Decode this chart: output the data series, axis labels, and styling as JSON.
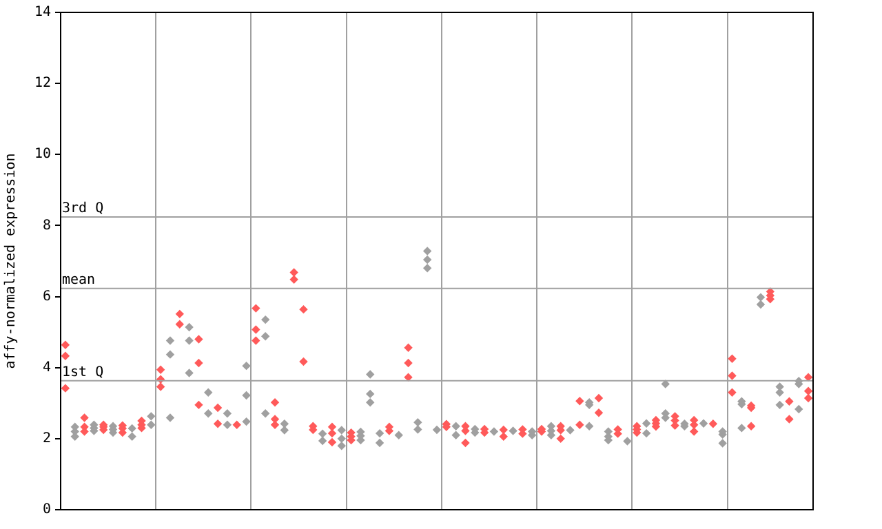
{
  "chart_data": {
    "type": "scatter",
    "ylabel": "affy-normalized expression",
    "categories": [
      null,
      null,
      null,
      null,
      null,
      null,
      null,
      null,
      null,
      null,
      null,
      null,
      null,
      null,
      null,
      null,
      null,
      null,
      null,
      null,
      null,
      null,
      null,
      null,
      null,
      null,
      null,
      null,
      null,
      null,
      null,
      null,
      null,
      null,
      null,
      null,
      null,
      null,
      null,
      null,
      null,
      null,
      null,
      null,
      null,
      null,
      null,
      null,
      null,
      null,
      null,
      null,
      null,
      null,
      null,
      null,
      null,
      null,
      null,
      null,
      null,
      null,
      null,
      null,
      null,
      null,
      null,
      null,
      null,
      null,
      null,
      null,
      null,
      null,
      null,
      null,
      null,
      null,
      null
    ],
    "ylim": [
      0,
      14
    ],
    "yticks": [
      0,
      2,
      4,
      6,
      8,
      10,
      12,
      14
    ],
    "tick_labels": "y",
    "grid": "x",
    "marker": "diamond",
    "legend": false,
    "ref_lines": [
      {
        "axis": "y",
        "value": 8.24,
        "label": "3rd Q",
        "color": "#a0a0a0"
      },
      {
        "axis": "y",
        "value": 6.23,
        "label": "mean",
        "color": "#a0a0a0"
      },
      {
        "axis": "y",
        "value": 3.63,
        "label": "1st Q",
        "color": "#a0a0a0"
      }
    ],
    "series": [
      {
        "values": [
          4.64,
          2.33,
          2.59,
          2.39,
          2.39,
          2.35,
          2.37,
          2.29,
          2.5,
          2.63,
          3.94,
          4.76,
          5.51,
          5.14,
          4.8,
          3.3,
          2.87,
          2.71,
          2.39,
          4.05,
          5.67,
          5.35,
          3.02,
          2.42,
          6.68,
          5.64,
          2.35,
          2.14,
          2.33,
          2.24,
          2.17,
          2.19,
          3.81,
          2.15,
          2.33,
          2.1,
          4.56,
          2.46,
          7.28,
          2.25,
          2.41,
          2.35,
          2.35,
          2.27,
          2.27,
          2.2,
          2.25,
          2.22,
          2.26,
          2.2,
          2.27,
          2.35,
          2.35,
          2.24,
          3.06,
          3.02,
          3.14,
          2.2,
          2.26,
          1.93,
          2.35,
          2.43,
          2.52,
          3.54,
          2.63,
          2.42,
          2.52,
          2.43,
          2.42,
          2.2,
          4.25,
          3.05,
          2.93,
          5.98,
          6.14,
          3.46,
          3.05,
          3.62,
          3.73
        ],
        "colors": [
          "#ff5a5a",
          "#a0a0a0",
          "#ff5a5a",
          "#a0a0a0",
          "#ff5a5a",
          "#a0a0a0",
          "#ff5a5a",
          "#a0a0a0",
          "#ff5a5a",
          "#a0a0a0",
          "#ff5a5a",
          "#a0a0a0",
          "#ff5a5a",
          "#a0a0a0",
          "#ff5a5a",
          "#a0a0a0",
          "#ff5a5a",
          "#a0a0a0",
          "#ff5a5a",
          "#a0a0a0",
          "#ff5a5a",
          "#a0a0a0",
          "#ff5a5a",
          "#a0a0a0",
          "#ff5a5a",
          "#ff5a5a",
          "#ff5a5a",
          "#a0a0a0",
          "#ff5a5a",
          "#a0a0a0",
          "#ff5a5a",
          "#a0a0a0",
          "#a0a0a0",
          "#a0a0a0",
          "#ff5a5a",
          "#a0a0a0",
          "#ff5a5a",
          "#a0a0a0",
          "#a0a0a0",
          "#a0a0a0",
          "#ff5a5a",
          "#a0a0a0",
          "#ff5a5a",
          "#a0a0a0",
          "#ff5a5a",
          "#a0a0a0",
          "#ff5a5a",
          "#a0a0a0",
          "#ff5a5a",
          "#a0a0a0",
          "#ff5a5a",
          "#a0a0a0",
          "#ff5a5a",
          "#a0a0a0",
          "#ff5a5a",
          "#a0a0a0",
          "#ff5a5a",
          "#a0a0a0",
          "#ff5a5a",
          "#a0a0a0",
          "#ff5a5a",
          "#a0a0a0",
          "#ff5a5a",
          "#a0a0a0",
          "#ff5a5a",
          "#a0a0a0",
          "#ff5a5a",
          "#a0a0a0",
          "#ff5a5a",
          "#a0a0a0",
          "#ff5a5a",
          "#a0a0a0",
          "#ff5a5a",
          "#a0a0a0",
          "#ff5a5a",
          "#a0a0a0",
          "#ff5a5a",
          "#a0a0a0",
          "#ff5a5a"
        ]
      },
      {
        "values": [
          4.33,
          2.2,
          2.33,
          2.3,
          2.33,
          2.26,
          2.29,
          2.06,
          2.39,
          2.39,
          3.67,
          4.37,
          5.22,
          4.76,
          4.13,
          2.71,
          2.42,
          2.39,
          null,
          3.22,
          5.07,
          4.88,
          2.55,
          2.24,
          6.48,
          4.17,
          2.25,
          1.94,
          2.15,
          2.0,
          2.06,
          2.08,
          3.26,
          1.88,
          2.22,
          null,
          4.13,
          2.26,
          7.04,
          null,
          2.33,
          2.1,
          2.22,
          2.17,
          2.17,
          null,
          2.06,
          null,
          2.14,
          2.1,
          2.2,
          2.22,
          2.24,
          null,
          2.39,
          2.95,
          2.73,
          2.06,
          2.14,
          null,
          2.26,
          2.15,
          2.43,
          2.71,
          2.51,
          2.35,
          2.39,
          null,
          null,
          2.12,
          3.77,
          2.97,
          2.87,
          5.78,
          6.03,
          3.3,
          2.55,
          3.54,
          3.34
        ],
        "colors": [
          "#ff5a5a",
          "#a0a0a0",
          "#ff5a5a",
          "#a0a0a0",
          "#ff5a5a",
          "#a0a0a0",
          "#ff5a5a",
          "#a0a0a0",
          "#ff5a5a",
          "#a0a0a0",
          "#ff5a5a",
          "#a0a0a0",
          "#ff5a5a",
          "#a0a0a0",
          "#ff5a5a",
          "#a0a0a0",
          "#ff5a5a",
          "#a0a0a0",
          "#ff5a5a",
          "#a0a0a0",
          "#ff5a5a",
          "#a0a0a0",
          "#ff5a5a",
          "#a0a0a0",
          "#ff5a5a",
          "#ff5a5a",
          "#ff5a5a",
          "#a0a0a0",
          "#ff5a5a",
          "#a0a0a0",
          "#ff5a5a",
          "#a0a0a0",
          "#a0a0a0",
          "#a0a0a0",
          "#ff5a5a",
          "#a0a0a0",
          "#ff5a5a",
          "#a0a0a0",
          "#a0a0a0",
          "#a0a0a0",
          "#ff5a5a",
          "#a0a0a0",
          "#ff5a5a",
          "#a0a0a0",
          "#ff5a5a",
          "#a0a0a0",
          "#ff5a5a",
          "#a0a0a0",
          "#ff5a5a",
          "#a0a0a0",
          "#ff5a5a",
          "#a0a0a0",
          "#ff5a5a",
          "#a0a0a0",
          "#ff5a5a",
          "#a0a0a0",
          "#ff5a5a",
          "#a0a0a0",
          "#ff5a5a",
          "#a0a0a0",
          "#ff5a5a",
          "#a0a0a0",
          "#ff5a5a",
          "#a0a0a0",
          "#ff5a5a",
          "#a0a0a0",
          "#ff5a5a",
          "#a0a0a0",
          "#ff5a5a",
          "#a0a0a0",
          "#ff5a5a",
          "#a0a0a0",
          "#ff5a5a",
          "#a0a0a0",
          "#ff5a5a",
          "#a0a0a0",
          "#ff5a5a",
          "#a0a0a0",
          "#ff5a5a"
        ]
      },
      {
        "values": [
          3.42,
          2.06,
          2.2,
          2.22,
          2.25,
          2.17,
          2.17,
          null,
          2.3,
          null,
          3.46,
          2.59,
          null,
          3.85,
          2.95,
          null,
          null,
          null,
          null,
          2.48,
          4.76,
          2.71,
          2.39,
          null,
          null,
          null,
          null,
          null,
          1.9,
          1.8,
          1.96,
          1.96,
          3.02,
          null,
          null,
          null,
          3.73,
          null,
          6.8,
          null,
          null,
          null,
          1.88,
          null,
          null,
          null,
          null,
          null,
          null,
          null,
          null,
          2.1,
          2.0,
          null,
          null,
          2.35,
          null,
          1.96,
          null,
          null,
          2.17,
          null,
          2.34,
          2.59,
          2.37,
          null,
          2.2,
          null,
          null,
          1.87,
          3.3,
          2.3,
          2.35,
          null,
          5.93,
          2.95,
          null,
          2.83,
          3.14
        ],
        "colors": [
          "#ff5a5a",
          "#a0a0a0",
          "#ff5a5a",
          "#a0a0a0",
          "#ff5a5a",
          "#a0a0a0",
          "#ff5a5a",
          "#a0a0a0",
          "#ff5a5a",
          "#a0a0a0",
          "#ff5a5a",
          "#a0a0a0",
          "#ff5a5a",
          "#a0a0a0",
          "#ff5a5a",
          "#a0a0a0",
          "#ff5a5a",
          "#a0a0a0",
          "#ff5a5a",
          "#a0a0a0",
          "#ff5a5a",
          "#a0a0a0",
          "#ff5a5a",
          "#a0a0a0",
          "#ff5a5a",
          "#ff5a5a",
          "#ff5a5a",
          "#a0a0a0",
          "#ff5a5a",
          "#a0a0a0",
          "#ff5a5a",
          "#a0a0a0",
          "#a0a0a0",
          "#a0a0a0",
          "#ff5a5a",
          "#a0a0a0",
          "#ff5a5a",
          "#a0a0a0",
          "#a0a0a0",
          "#a0a0a0",
          "#ff5a5a",
          "#a0a0a0",
          "#ff5a5a",
          "#a0a0a0",
          "#ff5a5a",
          "#a0a0a0",
          "#ff5a5a",
          "#a0a0a0",
          "#ff5a5a",
          "#a0a0a0",
          "#ff5a5a",
          "#a0a0a0",
          "#ff5a5a",
          "#a0a0a0",
          "#ff5a5a",
          "#a0a0a0",
          "#ff5a5a",
          "#a0a0a0",
          "#ff5a5a",
          "#a0a0a0",
          "#ff5a5a",
          "#a0a0a0",
          "#ff5a5a",
          "#a0a0a0",
          "#ff5a5a",
          "#a0a0a0",
          "#ff5a5a",
          "#a0a0a0",
          "#ff5a5a",
          "#a0a0a0",
          "#ff5a5a",
          "#a0a0a0",
          "#ff5a5a",
          "#a0a0a0",
          "#ff5a5a",
          "#a0a0a0",
          "#ff5a5a",
          "#a0a0a0",
          "#ff5a5a"
        ]
      }
    ]
  }
}
